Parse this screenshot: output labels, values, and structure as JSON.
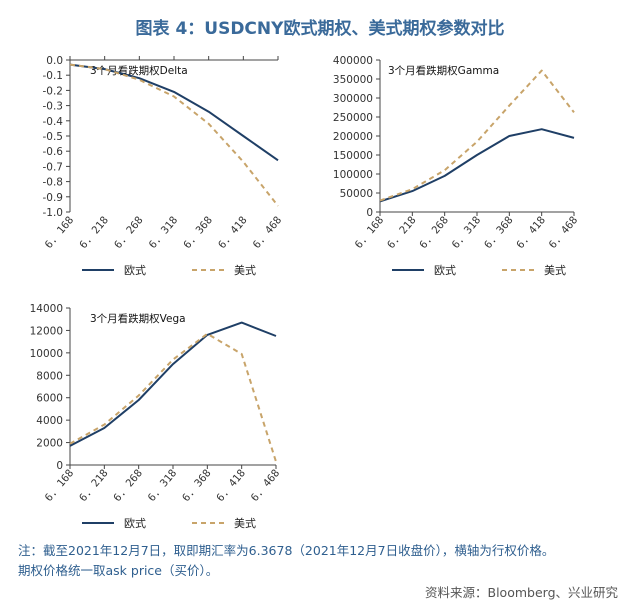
{
  "figure": {
    "title": "图表 4：USDCNY欧式期权、美式期权参数对比",
    "note_line1": "注：截至2021年12月7日，取即期汇率为6.3678（2021年12月7日收盘价），横轴为行权价格。",
    "note_line2": "期权价格统一取ask price（买价）。",
    "source": "资料来源：Bloomberg、兴业研究"
  },
  "colors": {
    "european": "#1f3f66",
    "american": "#c8a46a"
  },
  "chart_data": [
    {
      "id": "delta",
      "type": "line",
      "label": "3个月看跌期权Delta",
      "categories": [
        "6.168",
        "6.218",
        "6.268",
        "6.318",
        "6.368",
        "6.418",
        "6.468"
      ],
      "ylim": [
        -1.0,
        0.0
      ],
      "yticks": [
        -1.0,
        -0.9,
        -0.8,
        -0.7,
        -0.6,
        -0.5,
        -0.4,
        -0.3,
        -0.2,
        -0.1,
        0.0
      ],
      "ytick_labels": [
        "-1.0",
        "-0.9",
        "-0.8",
        "-0.7",
        "-0.6",
        "-0.5",
        "-0.4",
        "-0.3",
        "-0.2",
        "-0.1",
        "0.0"
      ],
      "series": [
        {
          "name": "欧式",
          "style": "solid",
          "values": [
            -0.03,
            -0.06,
            -0.12,
            -0.21,
            -0.34,
            -0.5,
            -0.66
          ]
        },
        {
          "name": "美式",
          "style": "dashed",
          "values": [
            -0.03,
            -0.06,
            -0.13,
            -0.24,
            -0.42,
            -0.67,
            -0.96
          ]
        }
      ]
    },
    {
      "id": "gamma",
      "type": "line",
      "label": "3个月看跌期权Gamma",
      "categories": [
        "6.168",
        "6.218",
        "6.268",
        "6.318",
        "6.368",
        "6.418",
        "6.468"
      ],
      "ylim": [
        0,
        400000
      ],
      "yticks": [
        0,
        50000,
        100000,
        150000,
        200000,
        250000,
        300000,
        350000,
        400000
      ],
      "ytick_labels": [
        "0",
        "50000",
        "100000",
        "150000",
        "200000",
        "250000",
        "300000",
        "350000",
        "400000"
      ],
      "series": [
        {
          "name": "欧式",
          "style": "solid",
          "values": [
            28000,
            55000,
            95000,
            150000,
            200000,
            218000,
            195000
          ]
        },
        {
          "name": "美式",
          "style": "dashed",
          "values": [
            30000,
            60000,
            110000,
            185000,
            280000,
            372000,
            262000
          ]
        }
      ]
    },
    {
      "id": "vega",
      "type": "line",
      "label": "3个月看跌期权Vega",
      "categories": [
        "6.168",
        "6.218",
        "6.268",
        "6.318",
        "6.368",
        "6.418",
        "6.468"
      ],
      "ylim": [
        0,
        14000
      ],
      "yticks": [
        0,
        2000,
        4000,
        6000,
        8000,
        10000,
        12000,
        14000
      ],
      "ytick_labels": [
        "0",
        "2000",
        "4000",
        "6000",
        "8000",
        "10000",
        "12000",
        "14000"
      ],
      "series": [
        {
          "name": "欧式",
          "style": "solid",
          "values": [
            1700,
            3300,
            5800,
            9000,
            11600,
            12700,
            11500
          ]
        },
        {
          "name": "美式",
          "style": "dashed",
          "values": [
            1900,
            3600,
            6200,
            9400,
            11700,
            9900,
            300
          ]
        }
      ]
    }
  ]
}
